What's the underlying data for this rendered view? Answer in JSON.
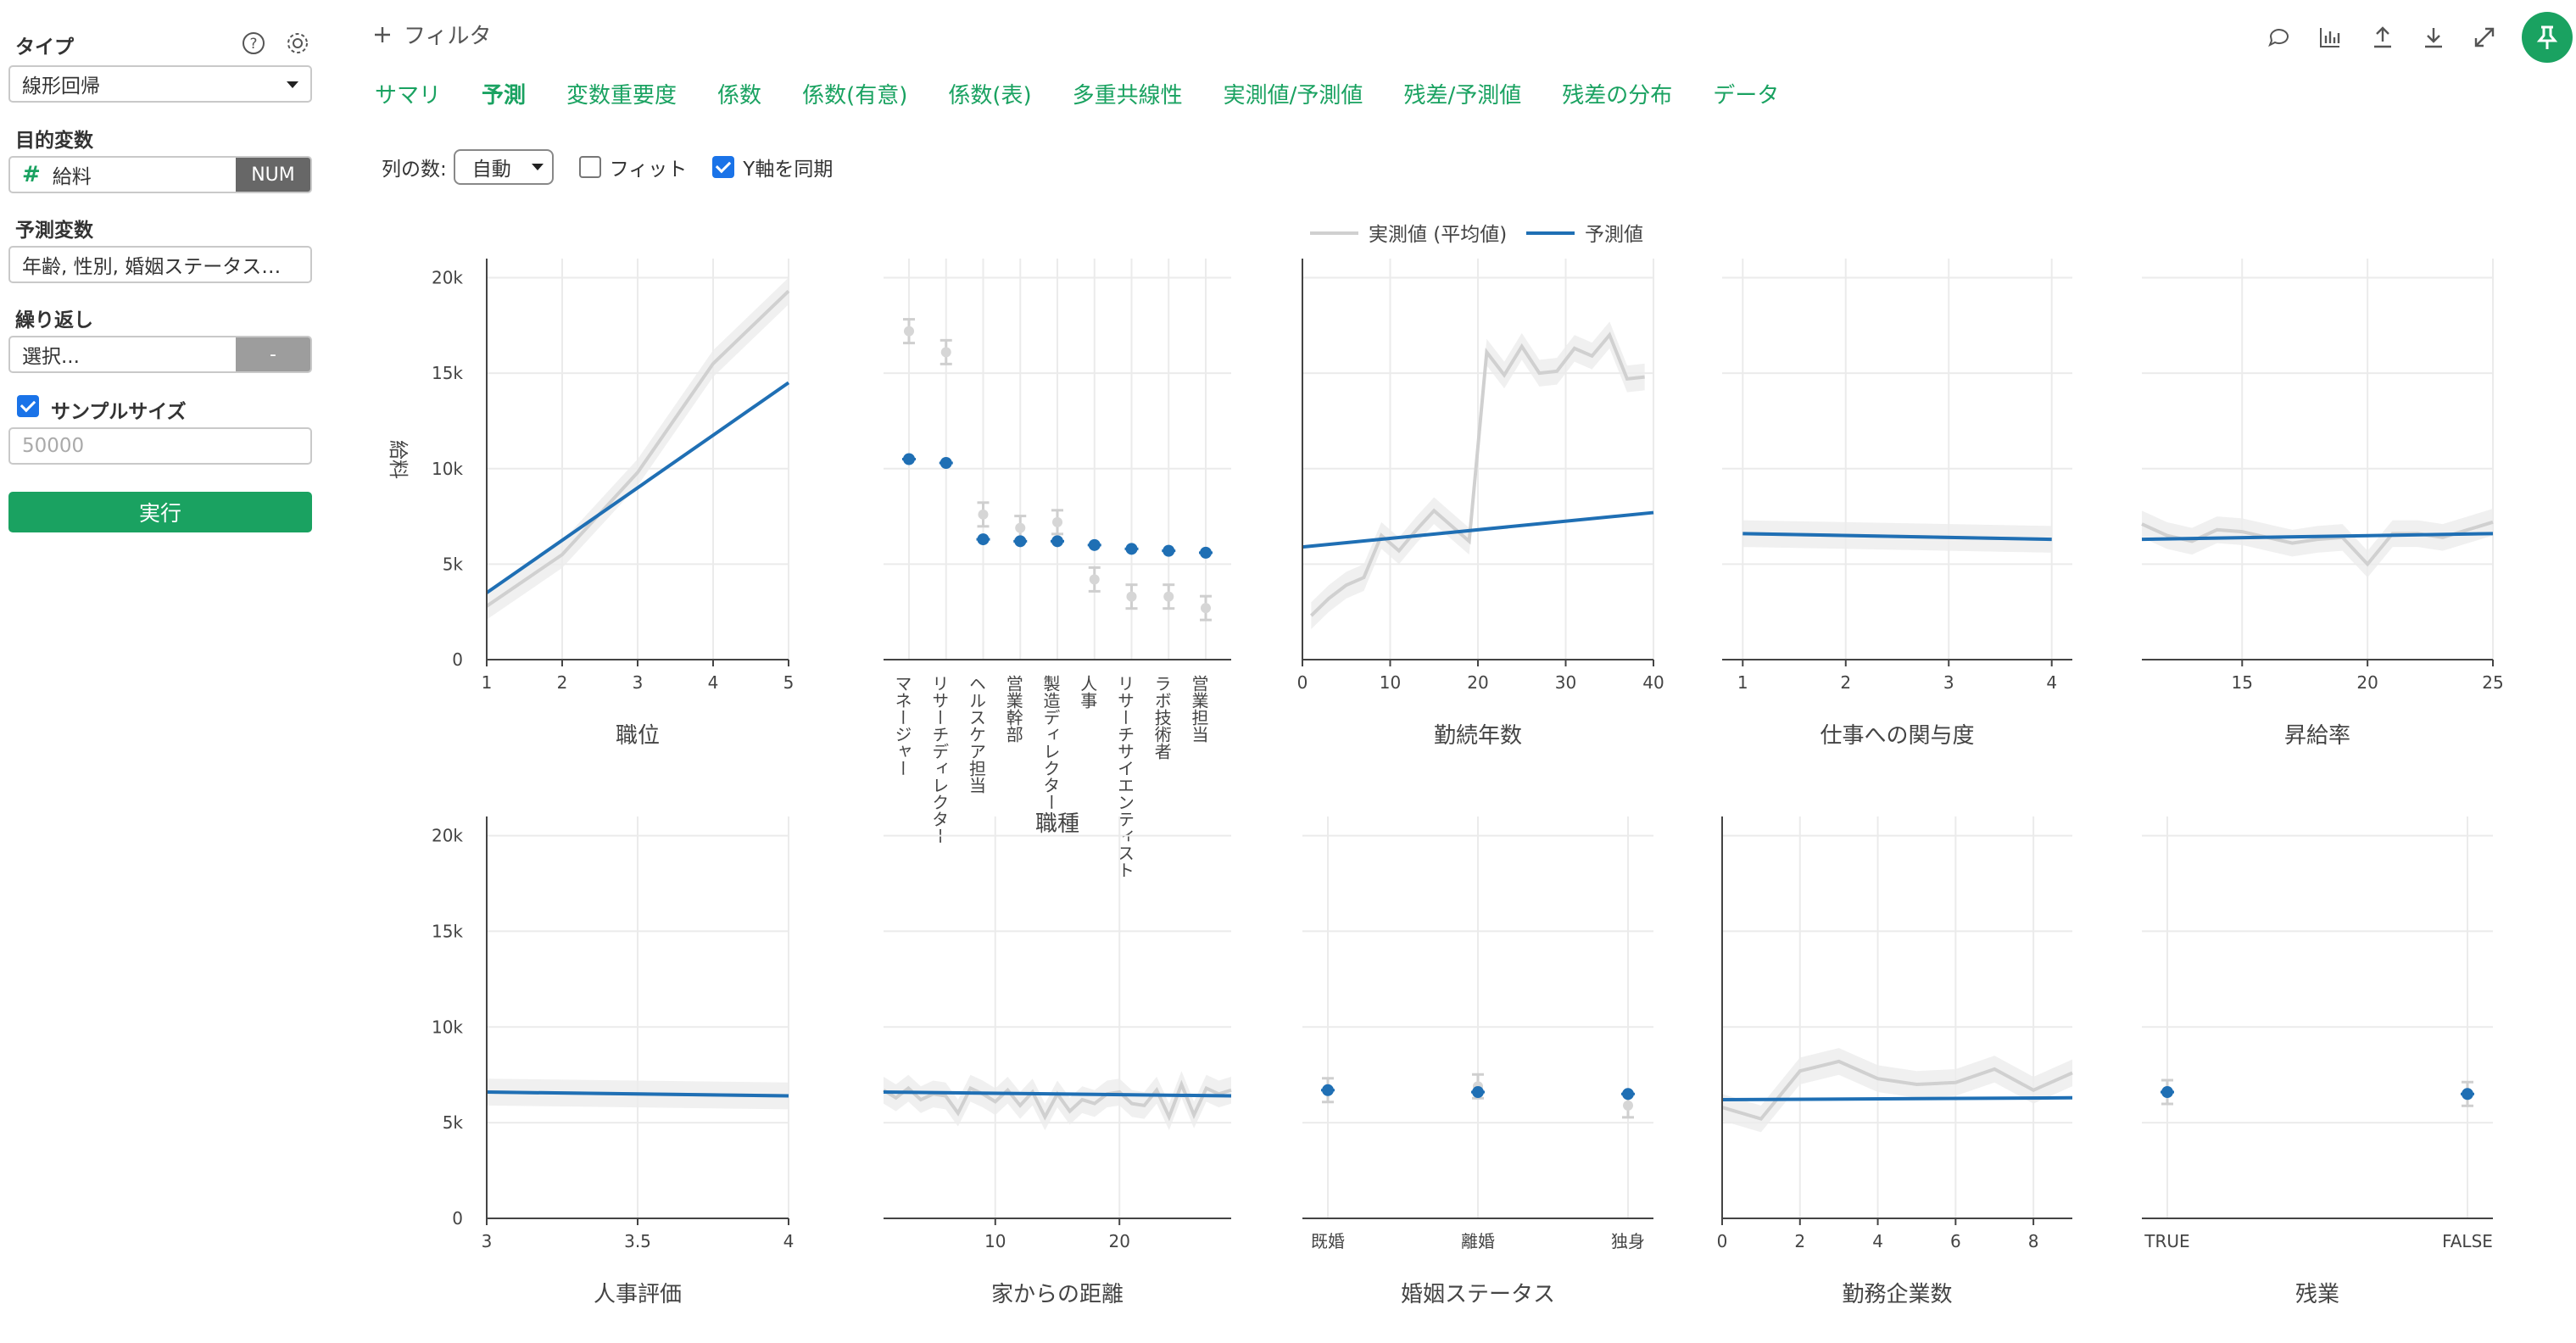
{
  "sidebar": {
    "type_label": "タイプ",
    "type_value": "線形回帰",
    "target_label": "目的変数",
    "target_value": "給料",
    "target_badge": "NUM",
    "predictors_label": "予測変数",
    "predictors_value": "年齢, 性別, 婚姻ステータス…",
    "repeat_label": "繰り返し",
    "repeat_value": "選択...",
    "repeat_button": "-",
    "sample_label": "サンプルサイズ",
    "sample_placeholder": "50000",
    "run_label": "実行"
  },
  "toolbar": {
    "filter_label": "フィルタ"
  },
  "tabs": [
    "サマリ",
    "予測",
    "変数重要度",
    "係数",
    "係数(有意)",
    "係数(表)",
    "多重共線性",
    "実測値/予測値",
    "残差/予測値",
    "残差の分布",
    "データ"
  ],
  "active_tab": 1,
  "controls": {
    "columns_label": "列の数:",
    "columns_value": "自動",
    "fit_label": "フィット",
    "sync_label": "Y軸を同期"
  },
  "colors": {
    "accent": "#1aa261",
    "predicted": "#1f6fb4",
    "actual": "#d0d0d0",
    "band": "#ececec"
  },
  "chart_data": {
    "legend": [
      "実測値 (平均値)",
      "予測値"
    ],
    "ylabel": "給料",
    "y_ticks": [
      "0",
      "5k",
      "10k",
      "15k",
      "20k"
    ],
    "ylim": [
      0,
      21000
    ],
    "panels": [
      {
        "type": "line",
        "xlabel": "職位",
        "ticks": [
          1,
          2,
          3,
          4,
          5
        ],
        "tick_labels": [
          "1",
          "2",
          "3",
          "4",
          "5"
        ],
        "xlim": [
          1,
          5
        ],
        "actual": [
          [
            1,
            2800
          ],
          [
            2,
            5500
          ],
          [
            3,
            9800
          ],
          [
            4,
            15500
          ],
          [
            5,
            19300
          ]
        ],
        "predicted": [
          [
            1,
            3500
          ],
          [
            5,
            14500
          ]
        ]
      },
      {
        "type": "category",
        "xlabel": "職種",
        "categories": [
          "マネージャー",
          "リサーチディレクター",
          "ヘルスケア担当",
          "営業幹部",
          "製造ディレクター",
          "人事",
          "リサーチサイエンティスト",
          "ラボ技術者",
          "営業担当"
        ],
        "actual": [
          17200,
          16100,
          7600,
          6900,
          7200,
          4200,
          3300,
          3300,
          2700
        ],
        "predicted": [
          10500,
          10300,
          6300,
          6200,
          6200,
          6000,
          5800,
          5700,
          5600
        ]
      },
      {
        "type": "line",
        "xlabel": "勤続年数",
        "ticks": [
          0,
          10,
          20,
          30,
          40
        ],
        "tick_labels": [
          "0",
          "10",
          "20",
          "30",
          "40"
        ],
        "xlim": [
          0,
          40
        ],
        "actual": [
          [
            1,
            2300
          ],
          [
            3,
            3200
          ],
          [
            5,
            3900
          ],
          [
            7,
            4300
          ],
          [
            9,
            6500
          ],
          [
            11,
            5700
          ],
          [
            13,
            6800
          ],
          [
            15,
            7800
          ],
          [
            17,
            7000
          ],
          [
            19,
            6200
          ],
          [
            21,
            16100
          ],
          [
            23,
            14900
          ],
          [
            25,
            16400
          ],
          [
            27,
            15000
          ],
          [
            29,
            15100
          ],
          [
            31,
            16300
          ],
          [
            33,
            15900
          ],
          [
            35,
            17000
          ],
          [
            37,
            14700
          ],
          [
            39,
            14800
          ]
        ],
        "predicted": [
          [
            0,
            5900
          ],
          [
            40,
            7700
          ]
        ]
      },
      {
        "type": "line",
        "xlabel": "仕事への関与度",
        "ticks": [
          1,
          2,
          3,
          4
        ],
        "tick_labels": [
          "1",
          "2",
          "3",
          "4"
        ],
        "xlim": [
          0.8,
          4.2
        ],
        "actual": [
          [
            1,
            6600
          ],
          [
            4,
            6300
          ]
        ],
        "predicted": [
          [
            1,
            6600
          ],
          [
            4,
            6300
          ]
        ]
      },
      {
        "type": "line",
        "xlabel": "昇給率",
        "ticks": [
          15,
          20,
          25
        ],
        "tick_labels": [
          "15",
          "20",
          "25"
        ],
        "xlim": [
          11,
          25
        ],
        "actual": [
          [
            11,
            7100
          ],
          [
            12,
            6500
          ],
          [
            13,
            6200
          ],
          [
            14,
            6800
          ],
          [
            15,
            6700
          ],
          [
            16,
            6400
          ],
          [
            17,
            6100
          ],
          [
            18,
            6300
          ],
          [
            19,
            6400
          ],
          [
            20,
            5000
          ],
          [
            21,
            6600
          ],
          [
            22,
            6600
          ],
          [
            23,
            6400
          ],
          [
            24,
            6800
          ],
          [
            25,
            7200
          ]
        ],
        "predicted": [
          [
            11,
            6300
          ],
          [
            25,
            6600
          ]
        ]
      },
      {
        "type": "line",
        "xlabel": "人事評価",
        "ticks": [
          3,
          3.5,
          4
        ],
        "tick_labels": [
          "3",
          "3.5",
          "4"
        ],
        "xlim": [
          3,
          4
        ],
        "actual": [
          [
            3,
            6600
          ],
          [
            4,
            6400
          ]
        ],
        "predicted": [
          [
            3,
            6600
          ],
          [
            4,
            6400
          ]
        ]
      },
      {
        "type": "line",
        "xlabel": "家からの距離",
        "ticks": [
          10,
          20
        ],
        "tick_labels": [
          "10",
          "20"
        ],
        "xlim": [
          1,
          29
        ],
        "actual": [
          [
            1,
            6700
          ],
          [
            2,
            6300
          ],
          [
            3,
            6800
          ],
          [
            4,
            6200
          ],
          [
            5,
            6500
          ],
          [
            6,
            6400
          ],
          [
            7,
            5500
          ],
          [
            8,
            6800
          ],
          [
            9,
            6500
          ],
          [
            10,
            6100
          ],
          [
            11,
            6700
          ],
          [
            12,
            5900
          ],
          [
            13,
            6600
          ],
          [
            14,
            5300
          ],
          [
            15,
            6500
          ],
          [
            16,
            5600
          ],
          [
            17,
            6200
          ],
          [
            18,
            6000
          ],
          [
            19,
            6500
          ],
          [
            20,
            6600
          ],
          [
            21,
            6000
          ],
          [
            22,
            5900
          ],
          [
            23,
            6700
          ],
          [
            24,
            5300
          ],
          [
            25,
            7000
          ],
          [
            26,
            5400
          ],
          [
            27,
            6800
          ],
          [
            28,
            6500
          ],
          [
            29,
            6700
          ]
        ],
        "predicted": [
          [
            1,
            6600
          ],
          [
            29,
            6400
          ]
        ]
      },
      {
        "type": "category",
        "xlabel": "婚姻ステータス",
        "categories": [
          "既婚",
          "離婚",
          "独身"
        ],
        "actual": [
          6700,
          6900,
          5900
        ],
        "predicted": [
          6700,
          6600,
          6500
        ]
      },
      {
        "type": "line",
        "xlabel": "勤務企業数",
        "ticks": [
          0,
          2,
          4,
          6,
          8
        ],
        "tick_labels": [
          "0",
          "2",
          "4",
          "6",
          "8"
        ],
        "xlim": [
          0,
          9
        ],
        "actual": [
          [
            0,
            5800
          ],
          [
            1,
            5200
          ],
          [
            2,
            7700
          ],
          [
            3,
            8200
          ],
          [
            4,
            7300
          ],
          [
            5,
            7000
          ],
          [
            6,
            7100
          ],
          [
            7,
            7800
          ],
          [
            8,
            6700
          ],
          [
            9,
            7600
          ]
        ],
        "predicted": [
          [
            0,
            6200
          ],
          [
            9,
            6300
          ]
        ]
      },
      {
        "type": "category",
        "xlabel": "残業",
        "categories": [
          "TRUE",
          "FALSE"
        ],
        "actual": [
          6600,
          6500
        ],
        "predicted": [
          6600,
          6500
        ]
      }
    ]
  }
}
